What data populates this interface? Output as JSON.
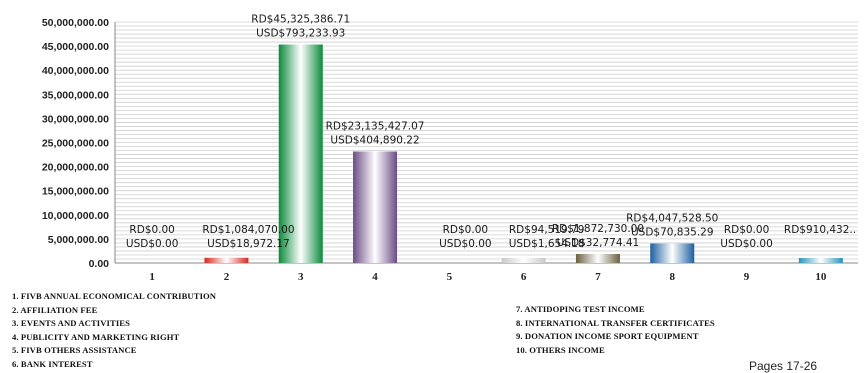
{
  "chart_data": {
    "type": "bar",
    "categories": [
      "1",
      "2",
      "3",
      "4",
      "5",
      "6",
      "7",
      "8",
      "9",
      "10"
    ],
    "values": [
      0,
      1084070.0,
      45325386.71,
      23135427.07,
      0,
      94519.79,
      1872730.0,
      4047528.5,
      0,
      910432
    ],
    "data_labels_rd": [
      "RD$0.00",
      "RD$1,084,070.00",
      "RD$45,325,386.71",
      "RD$23,135,427.07",
      "RD$0.00",
      "RD$94,519.79",
      "RD$1,872,730.00",
      "RD$4,047,528.50",
      "RD$0.00",
      "RD$910,432.."
    ],
    "data_labels_usd": [
      "USD$0.00",
      "USD$18,972.17",
      "USD$793,233.93",
      "USD$404,890.22",
      "USD$0.00",
      "USD$1,654.18",
      "USD$32,774.41",
      "USD$70,835.29",
      "USD$0.00",
      ""
    ],
    "yticks": [
      "0.00",
      "5,000,000.00",
      "10,000,000.00",
      "15,000,000.00",
      "20,000,000.00",
      "25,000,000.00",
      "30,000,000.00",
      "35,000,000.00",
      "40,000,000.00",
      "45,000,000.00",
      "50,000,000.00"
    ],
    "ylim": [
      0,
      50000000
    ],
    "grid": true,
    "bar_colors": [
      "#c8c8c8",
      "#d42a1e",
      "#0a8a3c",
      "#6b4c86",
      "#c8c8c8",
      "#c8c8c8",
      "#6b6040",
      "#1e5fa0",
      "#c8c8c8",
      "#2a93b8"
    ],
    "legend_left": [
      "1.   FIVB ANNUAL  ECONOMICAL CONTRIBUTION",
      "2.   AFFILIATION FEE",
      "3.   EVENTS AND ACTIVITIES",
      "4.   PUBLICITY AND  MARKETING RIGHT",
      "5.   FIVB OTHERS ASSISTANCE",
      "6.   BANK INTEREST"
    ],
    "legend_right": [
      "7.   ANTIDOPING TEST INCOME",
      "8.   INTERNATIONAL TRANSFER CERTIFICATES",
      "9.   DONATION INCOME SPORT EQUIPMENT",
      "10.  OTHERS INCOME"
    ]
  },
  "footer": {
    "page_text": "Pages 17-26"
  }
}
